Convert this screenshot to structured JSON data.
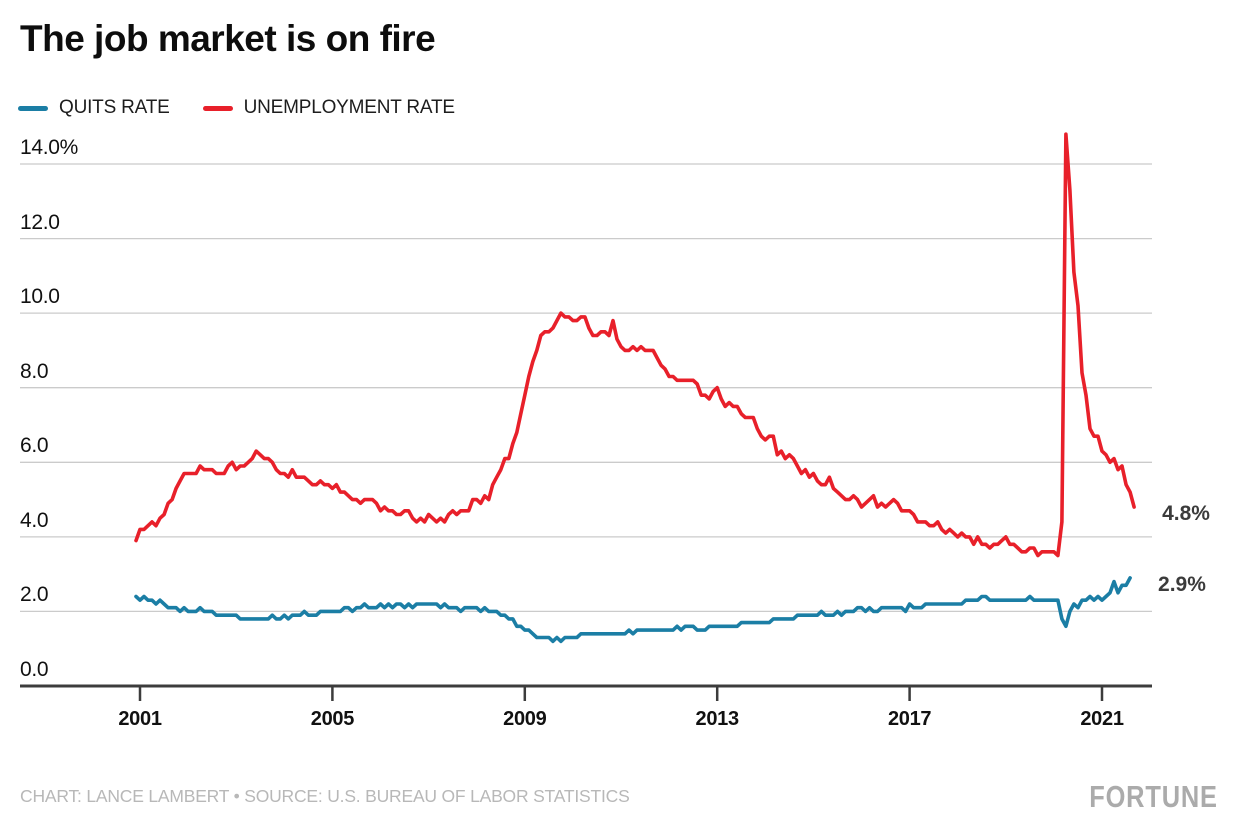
{
  "header": {
    "title": "The job market is on fire"
  },
  "legend": {
    "items": [
      {
        "label": "QUITS RATE",
        "color": "#1b7ea5"
      },
      {
        "label": "UNEMPLOYMENT RATE",
        "color": "#e8202a"
      }
    ]
  },
  "footer": {
    "credit": "CHART: LANCE LAMBERT • SOURCE: U.S. BUREAU OF LABOR STATISTICS",
    "brand": "FORTUNE"
  },
  "colors": {
    "quits_line": "#1b7ea5",
    "unemployment_line": "#e8202a",
    "gridline": "#cbcbcb",
    "axis": "#3c3c3c",
    "text": "#111111",
    "muted_text": "#b8b8b8"
  },
  "chart_data": {
    "type": "line",
    "title": "The job market is on fire",
    "xlabel": "",
    "ylabel": "",
    "frequency": "monthly",
    "x_start": "2000-12",
    "ylim": [
      0,
      14.8
    ],
    "grid": "horizontal",
    "legend_position": "top-left",
    "y_ticks": [
      {
        "label": "14.0%",
        "value": 14
      },
      {
        "label": "12.0",
        "value": 12
      },
      {
        "label": "10.0",
        "value": 10
      },
      {
        "label": "8.0",
        "value": 8
      },
      {
        "label": "6.0",
        "value": 6
      },
      {
        "label": "4.0",
        "value": 4
      },
      {
        "label": "2.0",
        "value": 2
      },
      {
        "label": "0.0",
        "value": 0
      }
    ],
    "x_ticks": [
      2001,
      2005,
      2009,
      2013,
      2017,
      2021
    ],
    "series": [
      {
        "name": "QUITS RATE",
        "color": "#1b7ea5",
        "end_label": "2.9%",
        "x_start": "2000-12",
        "values": [
          2.4,
          2.3,
          2.4,
          2.3,
          2.3,
          2.2,
          2.3,
          2.2,
          2.1,
          2.1,
          2.1,
          2.0,
          2.1,
          2.0,
          2.0,
          2.0,
          2.1,
          2.0,
          2.0,
          2.0,
          1.9,
          1.9,
          1.9,
          1.9,
          1.9,
          1.9,
          1.8,
          1.8,
          1.8,
          1.8,
          1.8,
          1.8,
          1.8,
          1.8,
          1.9,
          1.8,
          1.8,
          1.9,
          1.8,
          1.9,
          1.9,
          1.9,
          2.0,
          1.9,
          1.9,
          1.9,
          2.0,
          2.0,
          2.0,
          2.0,
          2.0,
          2.0,
          2.1,
          2.1,
          2.0,
          2.1,
          2.1,
          2.2,
          2.1,
          2.1,
          2.1,
          2.2,
          2.1,
          2.2,
          2.1,
          2.2,
          2.2,
          2.1,
          2.2,
          2.1,
          2.2,
          2.2,
          2.2,
          2.2,
          2.2,
          2.2,
          2.1,
          2.2,
          2.1,
          2.1,
          2.1,
          2.0,
          2.1,
          2.1,
          2.1,
          2.1,
          2.0,
          2.1,
          2.0,
          2.0,
          2.0,
          1.9,
          1.9,
          1.8,
          1.8,
          1.6,
          1.6,
          1.5,
          1.5,
          1.4,
          1.3,
          1.3,
          1.3,
          1.3,
          1.2,
          1.3,
          1.2,
          1.3,
          1.3,
          1.3,
          1.3,
          1.4,
          1.4,
          1.4,
          1.4,
          1.4,
          1.4,
          1.4,
          1.4,
          1.4,
          1.4,
          1.4,
          1.4,
          1.5,
          1.4,
          1.5,
          1.5,
          1.5,
          1.5,
          1.5,
          1.5,
          1.5,
          1.5,
          1.5,
          1.5,
          1.6,
          1.5,
          1.6,
          1.6,
          1.6,
          1.5,
          1.5,
          1.5,
          1.6,
          1.6,
          1.6,
          1.6,
          1.6,
          1.6,
          1.6,
          1.6,
          1.7,
          1.7,
          1.7,
          1.7,
          1.7,
          1.7,
          1.7,
          1.7,
          1.8,
          1.8,
          1.8,
          1.8,
          1.8,
          1.8,
          1.9,
          1.9,
          1.9,
          1.9,
          1.9,
          1.9,
          2.0,
          1.9,
          1.9,
          1.9,
          2.0,
          1.9,
          2.0,
          2.0,
          2.0,
          2.1,
          2.1,
          2.0,
          2.1,
          2.0,
          2.0,
          2.1,
          2.1,
          2.1,
          2.1,
          2.1,
          2.1,
          2.0,
          2.2,
          2.1,
          2.1,
          2.1,
          2.2,
          2.2,
          2.2,
          2.2,
          2.2,
          2.2,
          2.2,
          2.2,
          2.2,
          2.2,
          2.3,
          2.3,
          2.3,
          2.3,
          2.4,
          2.4,
          2.3,
          2.3,
          2.3,
          2.3,
          2.3,
          2.3,
          2.3,
          2.3,
          2.3,
          2.3,
          2.4,
          2.3,
          2.3,
          2.3,
          2.3,
          2.3,
          2.3,
          2.3,
          1.8,
          1.6,
          2.0,
          2.2,
          2.1,
          2.3,
          2.3,
          2.4,
          2.3,
          2.4,
          2.3,
          2.4,
          2.5,
          2.8,
          2.5,
          2.7,
          2.7,
          2.9
        ]
      },
      {
        "name": "UNEMPLOYMENT RATE",
        "color": "#e8202a",
        "end_label": "4.8%",
        "x_start": "2000-12",
        "values": [
          3.9,
          4.2,
          4.2,
          4.3,
          4.4,
          4.3,
          4.5,
          4.6,
          4.9,
          5.0,
          5.3,
          5.5,
          5.7,
          5.7,
          5.7,
          5.7,
          5.9,
          5.8,
          5.8,
          5.8,
          5.7,
          5.7,
          5.7,
          5.9,
          6.0,
          5.8,
          5.9,
          5.9,
          6.0,
          6.1,
          6.3,
          6.2,
          6.1,
          6.1,
          6.0,
          5.8,
          5.7,
          5.7,
          5.6,
          5.8,
          5.6,
          5.6,
          5.6,
          5.5,
          5.4,
          5.4,
          5.5,
          5.4,
          5.4,
          5.3,
          5.4,
          5.2,
          5.2,
          5.1,
          5.0,
          5.0,
          4.9,
          5.0,
          5.0,
          5.0,
          4.9,
          4.7,
          4.8,
          4.7,
          4.7,
          4.6,
          4.6,
          4.7,
          4.7,
          4.5,
          4.4,
          4.5,
          4.4,
          4.6,
          4.5,
          4.4,
          4.5,
          4.4,
          4.6,
          4.7,
          4.6,
          4.7,
          4.7,
          4.7,
          5.0,
          5.0,
          4.9,
          5.1,
          5.0,
          5.4,
          5.6,
          5.8,
          6.1,
          6.1,
          6.5,
          6.8,
          7.3,
          7.8,
          8.3,
          8.7,
          9.0,
          9.4,
          9.5,
          9.5,
          9.6,
          9.8,
          10.0,
          9.9,
          9.9,
          9.8,
          9.8,
          9.9,
          9.9,
          9.6,
          9.4,
          9.4,
          9.5,
          9.5,
          9.4,
          9.8,
          9.3,
          9.1,
          9.0,
          9.0,
          9.1,
          9.0,
          9.1,
          9.0,
          9.0,
          9.0,
          8.8,
          8.6,
          8.5,
          8.3,
          8.3,
          8.2,
          8.2,
          8.2,
          8.2,
          8.2,
          8.1,
          7.8,
          7.8,
          7.7,
          7.9,
          8.0,
          7.7,
          7.5,
          7.6,
          7.5,
          7.5,
          7.3,
          7.2,
          7.2,
          7.2,
          6.9,
          6.7,
          6.6,
          6.7,
          6.7,
          6.2,
          6.3,
          6.1,
          6.2,
          6.1,
          5.9,
          5.7,
          5.8,
          5.6,
          5.7,
          5.5,
          5.4,
          5.4,
          5.6,
          5.3,
          5.2,
          5.1,
          5.0,
          5.0,
          5.1,
          5.0,
          4.8,
          4.9,
          5.0,
          5.1,
          4.8,
          4.9,
          4.8,
          4.9,
          5.0,
          4.9,
          4.7,
          4.7,
          4.7,
          4.6,
          4.4,
          4.4,
          4.4,
          4.3,
          4.3,
          4.4,
          4.2,
          4.1,
          4.2,
          4.1,
          4.0,
          4.1,
          4.0,
          4.0,
          3.8,
          4.0,
          3.8,
          3.8,
          3.7,
          3.8,
          3.8,
          3.9,
          4.0,
          3.8,
          3.8,
          3.7,
          3.6,
          3.6,
          3.7,
          3.7,
          3.5,
          3.6,
          3.6,
          3.6,
          3.6,
          3.5,
          4.4,
          14.8,
          13.3,
          11.1,
          10.2,
          8.4,
          7.8,
          6.9,
          6.7,
          6.7,
          6.3,
          6.2,
          6.0,
          6.1,
          5.8,
          5.9,
          5.4,
          5.2,
          4.8
        ]
      }
    ]
  }
}
